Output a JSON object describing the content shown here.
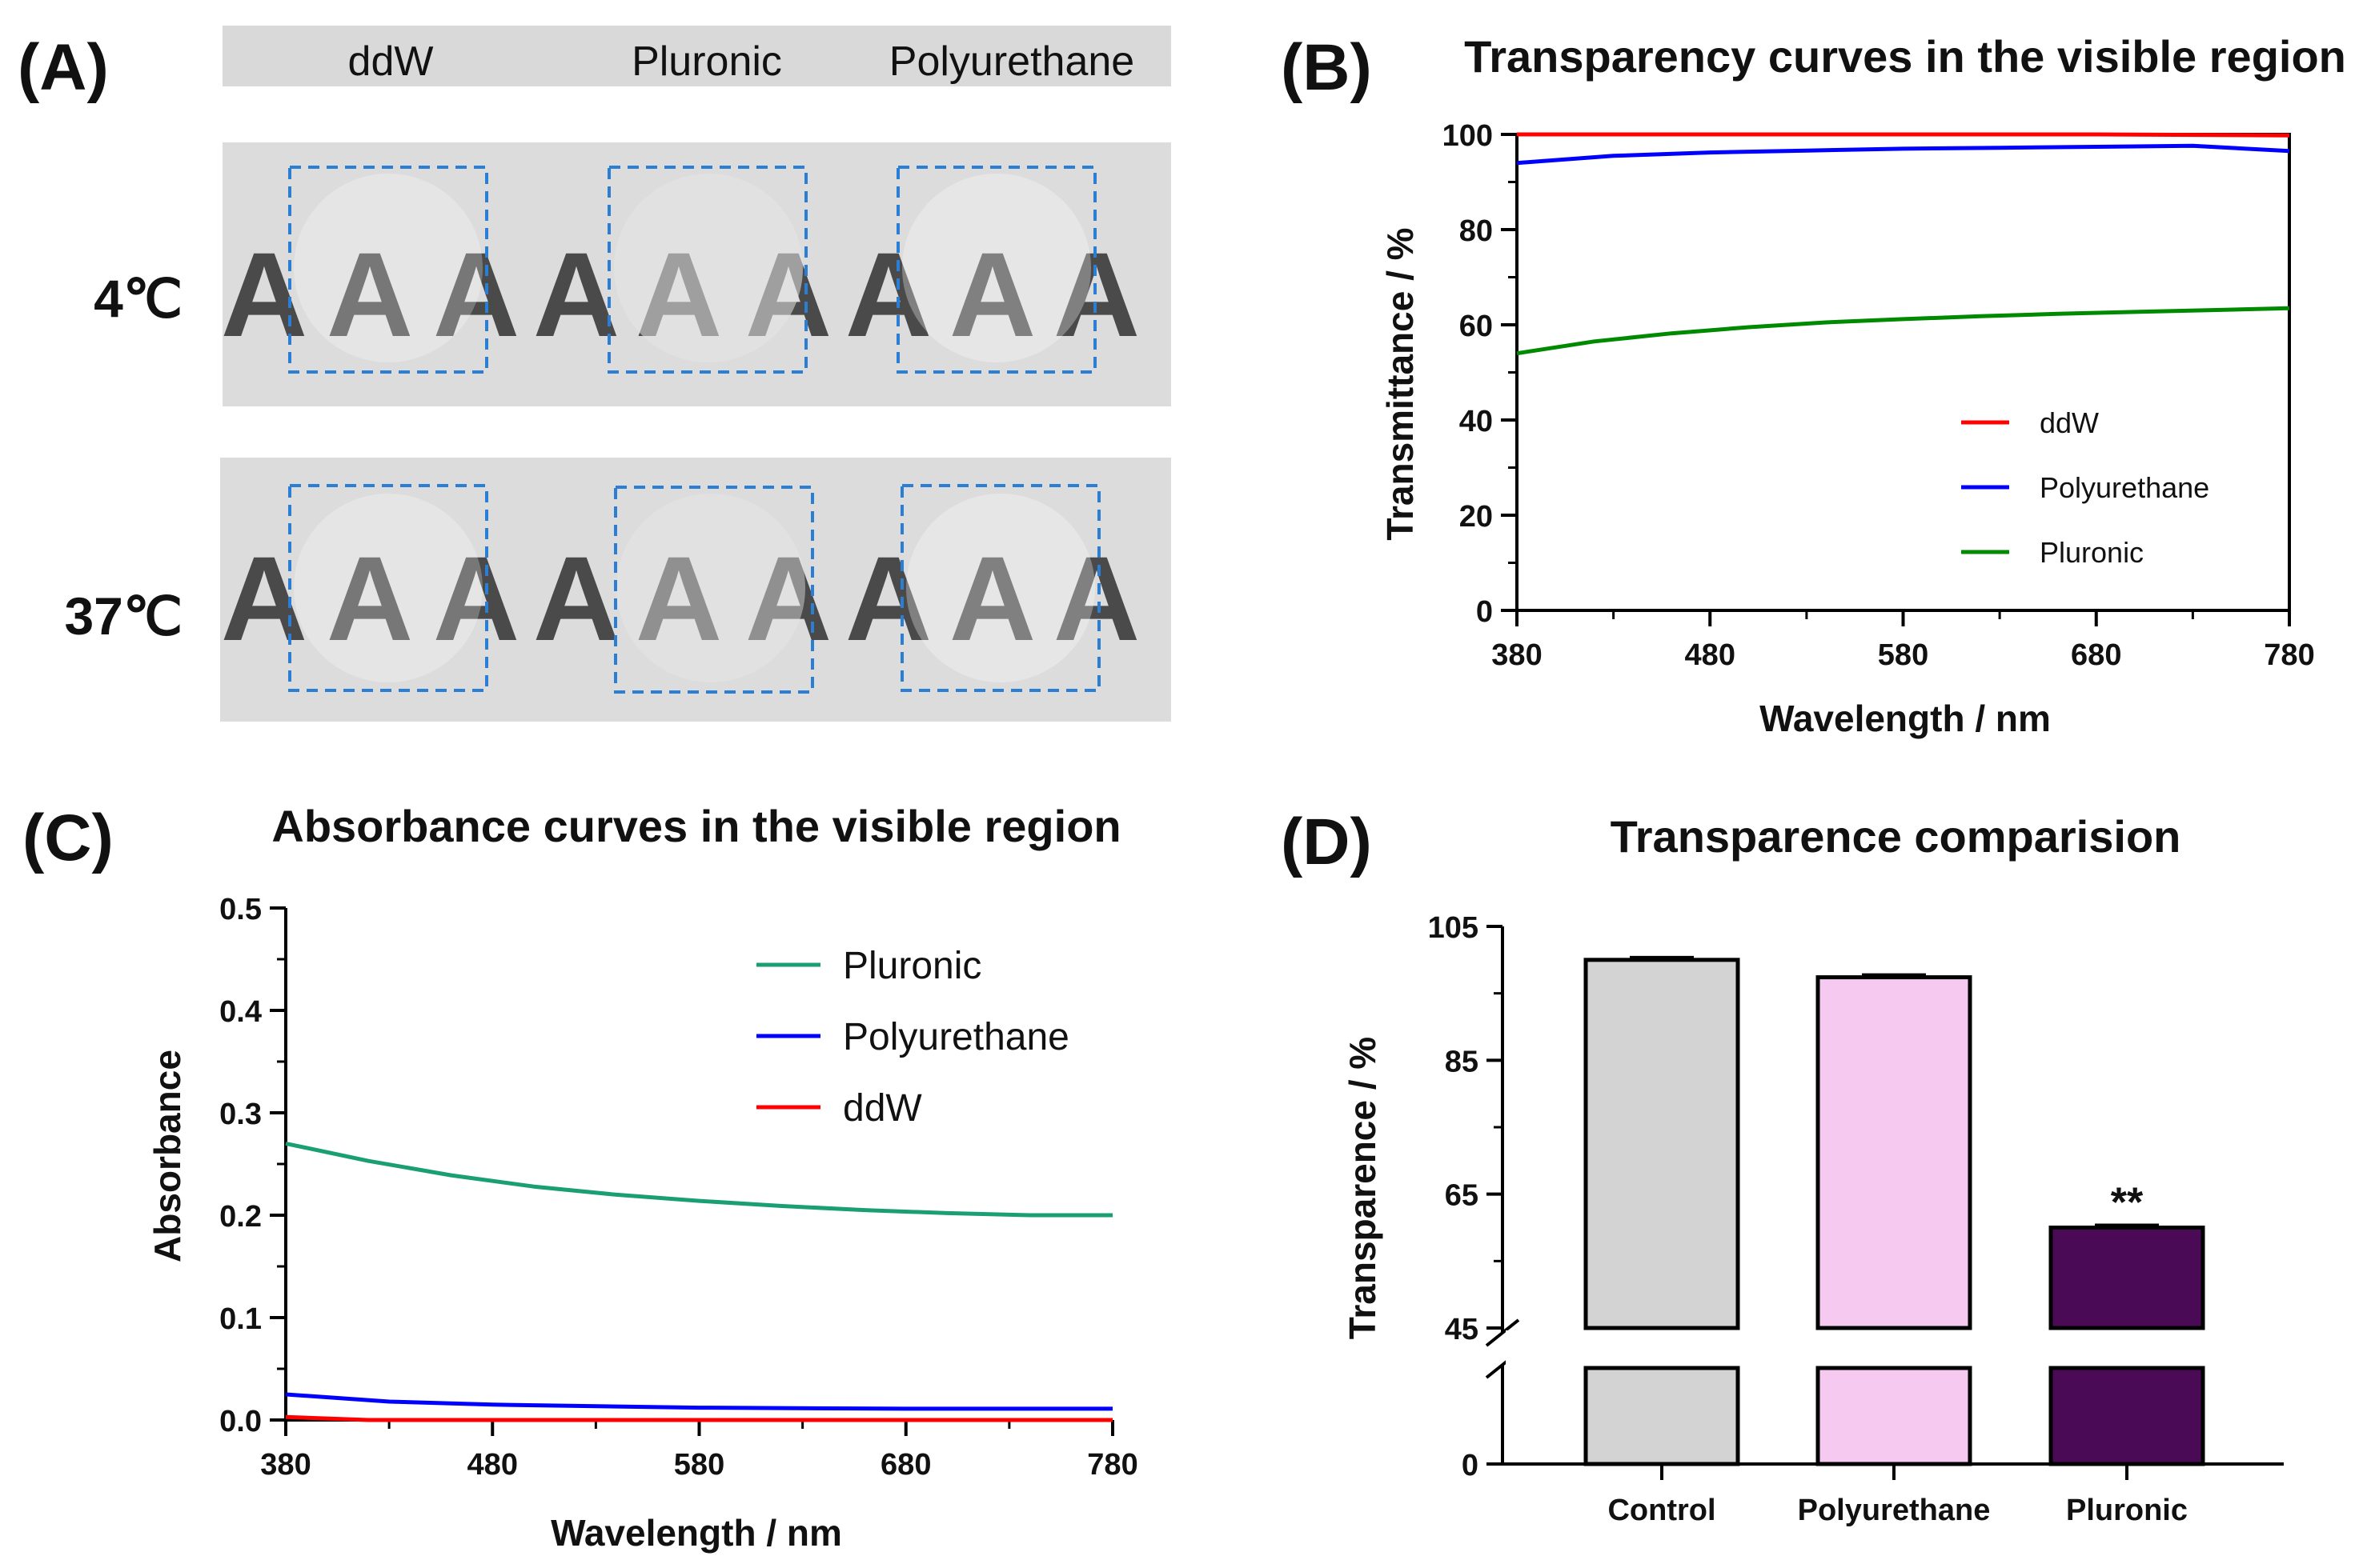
{
  "panelA": {
    "label": "(A)",
    "header": [
      "ddW",
      "Pluronic",
      "Polyurethane"
    ],
    "rows": [
      "4℃",
      "37℃"
    ],
    "letter_glyph": "A"
  },
  "chart_data": [
    {
      "id": "B",
      "panel_label": "(B)",
      "type": "line",
      "title": "Transparency curves in the visible region",
      "xlabel": "Wavelength / nm",
      "ylabel": "Transmittance / %",
      "xlim": [
        380,
        780
      ],
      "ylim": [
        0,
        100
      ],
      "xticks": [
        380,
        480,
        580,
        680,
        780
      ],
      "yticks": [
        0,
        20,
        40,
        60,
        80,
        100
      ],
      "legend_position": "center-right",
      "series": [
        {
          "name": "ddW",
          "color": "#ff0000",
          "x": [
            380,
            480,
            580,
            680,
            780
          ],
          "y": [
            100,
            100,
            100,
            100,
            99.8
          ]
        },
        {
          "name": "Polyurethane",
          "color": "#0000ff",
          "x": [
            380,
            430,
            480,
            530,
            580,
            630,
            680,
            730,
            780
          ],
          "y": [
            94,
            95.5,
            96.2,
            96.6,
            97,
            97.2,
            97.4,
            97.6,
            96.5
          ]
        },
        {
          "name": "Pluronic",
          "color": "#008a00",
          "x": [
            380,
            420,
            460,
            500,
            540,
            580,
            620,
            660,
            700,
            740,
            780
          ],
          "y": [
            54,
            56.5,
            58.2,
            59.5,
            60.5,
            61.2,
            61.8,
            62.3,
            62.7,
            63.1,
            63.5
          ]
        }
      ]
    },
    {
      "id": "C",
      "panel_label": "(C)",
      "type": "line",
      "title": "Absorbance curves in the visible region",
      "xlabel": "Wavelength / nm",
      "ylabel": "Absorbance",
      "xlim": [
        380,
        780
      ],
      "ylim": [
        0,
        0.5
      ],
      "xticks": [
        380,
        480,
        580,
        680,
        780
      ],
      "yticks": [
        "0.0",
        "0.1",
        "0.2",
        "0.3",
        "0.4",
        "0.5"
      ],
      "legend_position": "top-right",
      "series": [
        {
          "name": "Pluronic",
          "color": "#1a9e74",
          "x": [
            380,
            420,
            460,
            500,
            540,
            580,
            620,
            660,
            700,
            740,
            780
          ],
          "y": [
            0.27,
            0.253,
            0.239,
            0.228,
            0.22,
            0.214,
            0.209,
            0.205,
            0.202,
            0.2,
            0.2
          ]
        },
        {
          "name": "Polyurethane",
          "color": "#0000ff",
          "x": [
            380,
            430,
            480,
            580,
            680,
            780
          ],
          "y": [
            0.025,
            0.018,
            0.015,
            0.012,
            0.011,
            0.011
          ]
        },
        {
          "name": "ddW",
          "color": "#ff0000",
          "x": [
            380,
            420,
            480,
            580,
            680,
            780
          ],
          "y": [
            0.003,
            0.0,
            0.0,
            0.0,
            0.0,
            0.0
          ]
        }
      ]
    },
    {
      "id": "D",
      "panel_label": "(D)",
      "type": "bar",
      "title": "Transparence comparision",
      "ylabel": "Transparence / %",
      "categories": [
        "Control",
        "Polyurethane",
        "Pluronic"
      ],
      "values": [
        100,
        97.4,
        60
      ],
      "colors": [
        "#d3d3d3",
        "#f6c9f0",
        "#4a0a55"
      ],
      "annotations": [
        "",
        "",
        "**"
      ],
      "yticks": [
        0,
        45,
        65,
        85,
        105
      ],
      "ylim": [
        0,
        105
      ],
      "axis_break": [
        0,
        45
      ]
    }
  ]
}
